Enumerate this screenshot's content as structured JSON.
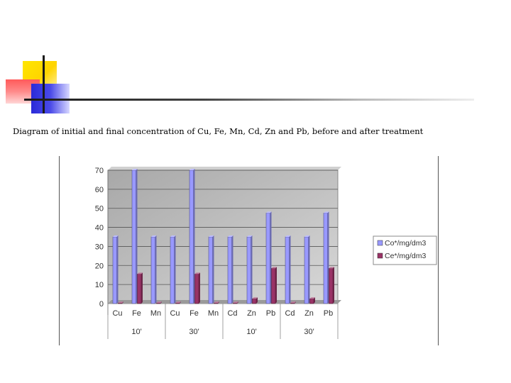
{
  "slide": {
    "title": "Diagram of initial and final concentration of Cu, Fe, Mn, Cd, Zn and Pb, before and after treatment"
  },
  "colors": {
    "series_initial": "#9999ff",
    "series_final": "#993366",
    "plot_background": "#c0c0c0",
    "gridline": "#555555"
  },
  "chart_data": {
    "type": "bar",
    "title": "",
    "xlabel": "",
    "ylabel": "",
    "ylim": [
      0,
      70
    ],
    "yticks": [
      0,
      10,
      20,
      30,
      40,
      50,
      60,
      70
    ],
    "grid": true,
    "legend_position": "right",
    "categories": [
      "Cu",
      "Fe",
      "Mn",
      "Cu",
      "Fe",
      "Mn",
      "Cd",
      "Zn",
      "Pb",
      "Cd",
      "Zn",
      "Pb"
    ],
    "groups": [
      {
        "label": "10'",
        "span": 3
      },
      {
        "label": "30'",
        "span": 3
      },
      {
        "label": "10'",
        "span": 3
      },
      {
        "label": "30'",
        "span": 3
      }
    ],
    "series": [
      {
        "name": "Co*/mg/dm3",
        "values": [
          35,
          70,
          35,
          35,
          70,
          35,
          35,
          35,
          47.5,
          35,
          35,
          47.5
        ]
      },
      {
        "name": "Ce*/mg/dm3",
        "values": [
          0.3,
          15.5,
          0.3,
          0.3,
          15.5,
          0.3,
          0.3,
          2.5,
          18.5,
          0.3,
          2.5,
          18.5
        ]
      }
    ]
  }
}
